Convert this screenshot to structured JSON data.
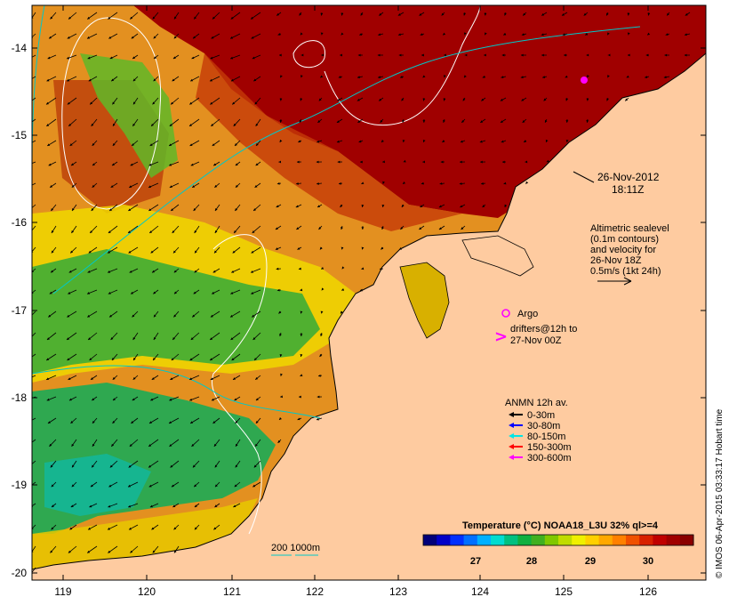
{
  "map": {
    "lon_ticks": [
      "119",
      "120",
      "121",
      "122",
      "123",
      "124",
      "125",
      "126"
    ],
    "lat_ticks": [
      "-14",
      "-15",
      "-16",
      "-17",
      "-18",
      "-19",
      "-20"
    ],
    "timestamp_date": "26-Nov-2012",
    "timestamp_time": "18:11Z",
    "altimetry_lines": [
      "Altimetric sealevel",
      "(0.1m contours)",
      "and velocity for",
      "26-Nov 18Z",
      "0.5m/s (1kt 24h)"
    ],
    "argo_label": "Argo",
    "drifters_lines": [
      "drifters@12h to",
      "27-Nov 00Z"
    ],
    "anmn_title": "ANMN 12h av.",
    "anmn_legend": [
      {
        "label": "0-30m",
        "color": "#000000"
      },
      {
        "label": "30-80m",
        "color": "#0000ff"
      },
      {
        "label": "80-150m",
        "color": "#00e5e5"
      },
      {
        "label": "150-300m",
        "color": "#ff0000"
      },
      {
        "label": "300-600m",
        "color": "#ff00ff"
      }
    ],
    "depth_contours_label": "200  1000m",
    "colorbar": {
      "title": "Temperature (°C) NOAA18_L3U 32% ql>=4",
      "ticks": [
        "27",
        "28",
        "29",
        "30"
      ],
      "colors": [
        "#00007a",
        "#0000c8",
        "#0030ff",
        "#0070ff",
        "#00b0ff",
        "#00dcd0",
        "#00c080",
        "#10b040",
        "#40b020",
        "#80c800",
        "#c0dc00",
        "#f0f000",
        "#ffd000",
        "#ffa800",
        "#ff8000",
        "#f05000",
        "#d82000",
        "#c00000",
        "#a00000",
        "#8a0000"
      ]
    },
    "credit": "© IMOS 06-Apr-2015 03:33:17 Hobart time"
  }
}
